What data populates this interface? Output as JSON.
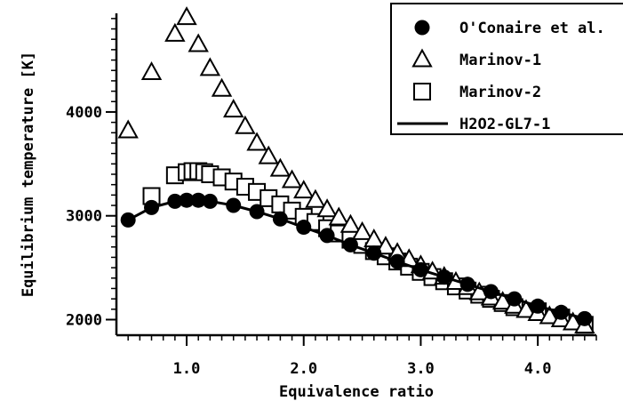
{
  "chart_data": {
    "type": "scatter",
    "title": "",
    "xlabel": "Equivalence ratio",
    "ylabel": "Equilibrium temperature [K]",
    "xlim": [
      0.4,
      4.5
    ],
    "ylim": [
      1850,
      4950
    ],
    "xticks": [
      1.0,
      2.0,
      3.0,
      4.0
    ],
    "xtick_labels": [
      "1.0",
      "2.0",
      "3.0",
      "4.0"
    ],
    "yticks": [
      2000,
      3000,
      4000
    ],
    "ytick_labels": [
      "2000",
      "3000",
      "4000"
    ],
    "grid": false,
    "legend_position": "top-right",
    "series": [
      {
        "name": "O'Conaire et al.",
        "marker": "filled-circle",
        "x": [
          0.5,
          0.7,
          0.9,
          1.0,
          1.1,
          1.2,
          1.4,
          1.6,
          1.8,
          2.0,
          2.2,
          2.4,
          2.6,
          2.8,
          3.0,
          3.2,
          3.4,
          3.6,
          3.8,
          4.0,
          4.2,
          4.4
        ],
        "y": [
          2960,
          3080,
          3140,
          3150,
          3150,
          3140,
          3100,
          3040,
          2970,
          2890,
          2810,
          2720,
          2640,
          2560,
          2480,
          2410,
          2340,
          2270,
          2200,
          2130,
          2070,
          2010
        ]
      },
      {
        "name": "Marinov-1",
        "marker": "open-triangle",
        "x": [
          0.5,
          0.7,
          0.9,
          1.0,
          1.1,
          1.2,
          1.3,
          1.4,
          1.5,
          1.6,
          1.7,
          1.8,
          1.9,
          2.0,
          2.1,
          2.2,
          2.3,
          2.4,
          2.5,
          2.6,
          2.7,
          2.8,
          2.9,
          3.0,
          3.1,
          3.2,
          3.3,
          3.4,
          3.5,
          3.6,
          3.7,
          3.8,
          3.9,
          4.0,
          4.1,
          4.2,
          4.3,
          4.4
        ],
        "y": [
          3820,
          4380,
          4750,
          4910,
          4650,
          4420,
          4220,
          4020,
          3860,
          3700,
          3570,
          3450,
          3340,
          3240,
          3150,
          3060,
          2980,
          2910,
          2840,
          2770,
          2700,
          2640,
          2580,
          2520,
          2460,
          2410,
          2360,
          2310,
          2260,
          2210,
          2170,
          2130,
          2090,
          2060,
          2030,
          2000,
          1970,
          1940
        ]
      },
      {
        "name": "Marinov-2",
        "marker": "open-square",
        "x": [
          0.7,
          0.9,
          1.0,
          1.05,
          1.1,
          1.15,
          1.2,
          1.3,
          1.4,
          1.5,
          1.6,
          1.7,
          1.8,
          1.9,
          2.0,
          2.1,
          2.2,
          2.3,
          2.4,
          2.5,
          2.6,
          2.7,
          2.8,
          2.9,
          3.0,
          3.1,
          3.2,
          3.3,
          3.4,
          3.5,
          3.6,
          3.7,
          3.8,
          4.0,
          4.2,
          4.4
        ],
        "y": [
          3190,
          3390,
          3420,
          3430,
          3430,
          3420,
          3400,
          3370,
          3330,
          3280,
          3230,
          3170,
          3110,
          3050,
          2990,
          2940,
          2880,
          2830,
          2770,
          2720,
          2660,
          2610,
          2560,
          2510,
          2460,
          2410,
          2370,
          2320,
          2280,
          2240,
          2200,
          2160,
          2120,
          2080,
          2020,
          1950
        ]
      },
      {
        "name": "H2O2-GL7-1",
        "marker": "line",
        "x": [
          0.5,
          0.7,
          0.9,
          1.0,
          1.1,
          1.2,
          1.4,
          1.6,
          1.8,
          2.0,
          2.2,
          2.4,
          2.6,
          2.8,
          3.0,
          3.2,
          3.4,
          3.6,
          3.8,
          4.0,
          4.2,
          4.4
        ],
        "y": [
          2960,
          3080,
          3140,
          3150,
          3150,
          3140,
          3100,
          3040,
          2970,
          2890,
          2810,
          2720,
          2640,
          2560,
          2480,
          2410,
          2340,
          2270,
          2200,
          2130,
          2070,
          2010
        ]
      }
    ]
  }
}
